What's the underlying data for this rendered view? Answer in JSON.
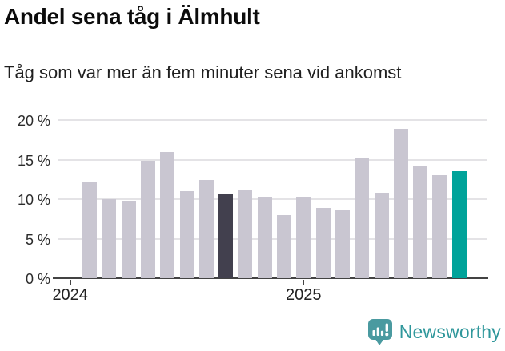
{
  "title": "Andel sena tåg i Älmhult",
  "subtitle": "Tåg som var mer än fem minuter sena vid ankomst",
  "chart_data": {
    "type": "bar",
    "title": "Andel sena tåg i Älmhult",
    "subtitle": "Tåg som var mer än fem minuter sena vid ankomst",
    "unit": "%",
    "values": [
      12.1,
      10.0,
      9.8,
      14.8,
      16.0,
      11.0,
      12.4,
      10.6,
      11.1,
      10.3,
      8.0,
      10.2,
      8.9,
      8.6,
      15.2,
      10.8,
      18.9,
      14.2,
      13.0,
      13.5
    ],
    "highlight_dark_index": 7,
    "highlight_teal_index": 19,
    "ylim": [
      0,
      20
    ],
    "grid": true,
    "y_tick_labels_top_to_bottom": [
      "20 %",
      "15 %",
      "10 %",
      "5 %",
      "0 %"
    ],
    "y_tick_values": [
      20,
      15,
      10,
      5,
      0
    ],
    "x_tick_labels": [
      "2024",
      "2025"
    ],
    "colors": {
      "bar": "#c9c6d1",
      "dark": "#42404e",
      "teal": "#00a39a",
      "grid": "#e4e3e6",
      "axis": "#434343"
    }
  },
  "footer": {
    "brand": "Newsworthy",
    "brand_text_color": "#2f979b",
    "brand_icon": "newsworthy-bar-chart-bubble-icon",
    "brand_icon_color": "#4a9aa0"
  }
}
